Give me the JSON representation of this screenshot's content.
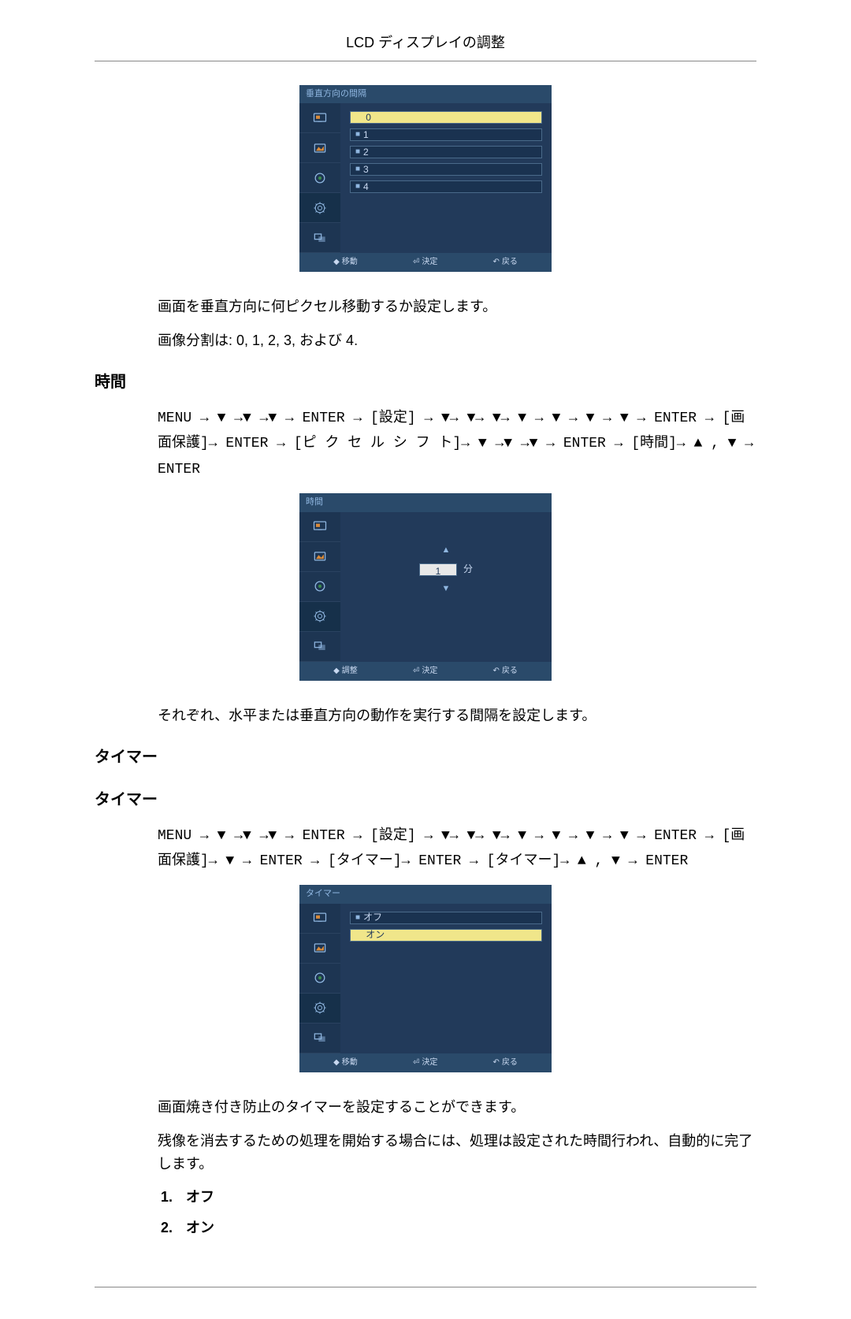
{
  "header": {
    "title": "LCD ディスプレイの調整"
  },
  "osd1": {
    "title": "垂直方向の間隔",
    "options": [
      "0",
      "1",
      "2",
      "3",
      "4"
    ],
    "selected_index": 0,
    "footer": {
      "move": "移動",
      "enter": "決定",
      "return": "戻る"
    }
  },
  "osd1_desc1": "画面を垂直方向に何ピクセル移動するか設定します。",
  "osd1_desc2": "画像分割は: 0, 1, 2, 3, および 4.",
  "section_time": {
    "heading": "時間",
    "nav_sequence": "MENU → ▼ →▼ →▼ → ENTER → [設定] → ▼→ ▼→ ▼→ ▼ → ▼ → ▼ → ▼ → ENTER → [画面保護]→ ENTER → [ピ ク セ ル シ フ ト]→ ▼ →▼ →▼ → ENTER → [時間]→ ▲ , ▼ → ENTER",
    "desc": "それぞれ、水平または垂直方向の動作を実行する間隔を設定します。"
  },
  "osd2": {
    "title": "時間",
    "value": "1",
    "unit": "分",
    "footer": {
      "move": "調整",
      "enter": "決定",
      "return": "戻る"
    }
  },
  "section_timer": {
    "heading1": "タイマー",
    "heading2": "タイマー",
    "nav_sequence": "MENU → ▼ →▼ →▼ → ENTER → [設定] → ▼→ ▼→ ▼→ ▼ → ▼ → ▼ → ▼ → ENTER → [画面保護]→ ▼ → ENTER → [タイマー]→ ENTER → [タイマー]→ ▲ , ▼ → ENTER",
    "desc1": "画面焼き付き防止のタイマーを設定することができます。",
    "desc2": "残像を消去するための処理を開始する場合には、処理は設定された時間行われ、自動的に完了します。",
    "options": [
      "オフ",
      "オン"
    ]
  },
  "osd3": {
    "title": "タイマー",
    "options": [
      "オフ",
      "オン"
    ],
    "selected_index": 1,
    "footer": {
      "move": "移動",
      "enter": "決定",
      "return": "戻る"
    }
  },
  "icons": {
    "stroke": "#8fb6e0",
    "fill_accent": "#d88a3a"
  }
}
